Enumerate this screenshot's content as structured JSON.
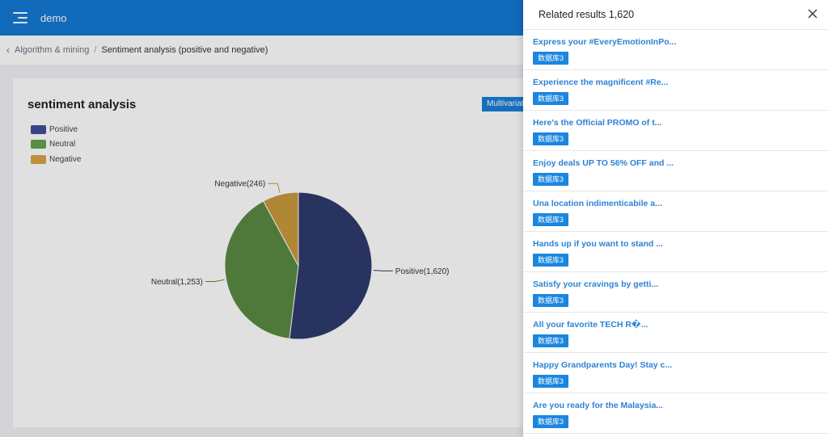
{
  "topbar": {
    "title": "demo",
    "menu_icon": "menu-fold-icon"
  },
  "breadcrumb": {
    "back_icon": "chevron-left-icon",
    "parent": "Algorithm & mining",
    "separator": "/",
    "current": "Sentiment analysis (positive and negative)"
  },
  "card": {
    "title": "sentiment analysis",
    "multi_button_label": "Multivariate"
  },
  "chart_data": {
    "type": "pie",
    "title": "sentiment analysis",
    "legend_position": "top-left",
    "slices": [
      {
        "name": "Positive",
        "value": 1620,
        "label": "Positive(1,620)",
        "color": "#2e3b6e"
      },
      {
        "name": "Neutral",
        "value": 1253,
        "label": "Neutral(1,253)",
        "color": "#5b8a44"
      },
      {
        "name": "Negative",
        "value": 246,
        "label": "Negative(246)",
        "color": "#c99a3c"
      }
    ]
  },
  "legend_colors": {
    "Positive": "#3f4f99",
    "Neutral": "#66a34f",
    "Negative": "#d9a444"
  },
  "drawer": {
    "title": "Related results 1,620",
    "close_icon": "close-icon",
    "results": [
      {
        "title": "Express your #EveryEmotionInPo...",
        "tag": "数据库3"
      },
      {
        "title": "Experience the magnificent #Re...",
        "tag": "数据库3"
      },
      {
        "title": "Here's the Official PROMO of t...",
        "tag": "数据库3"
      },
      {
        "title": "Enjoy deals UP TO 56% OFF and ...",
        "tag": "数据库3"
      },
      {
        "title": "Una location indimenticabile a...",
        "tag": "数据库3"
      },
      {
        "title": "Hands up if you want to stand ...",
        "tag": "数据库3"
      },
      {
        "title": "Satisfy your cravings by getti...",
        "tag": "数据库3"
      },
      {
        "title": "All your favorite TECH R�...",
        "tag": "数据库3"
      },
      {
        "title": "Happy Grandparents Day! Stay c...",
        "tag": "数据库3"
      },
      {
        "title": "Are you ready for the Malaysia...",
        "tag": "数据库3"
      }
    ]
  }
}
